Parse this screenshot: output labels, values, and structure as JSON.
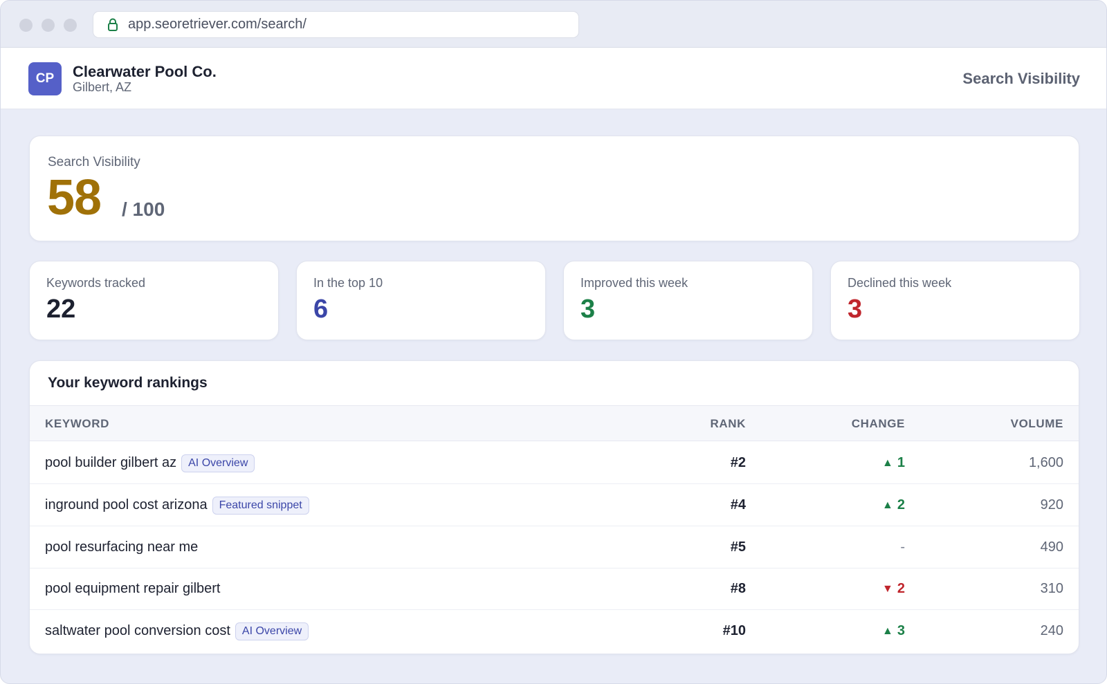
{
  "browser": {
    "url": "app.seoretriever.com/search/"
  },
  "business": {
    "initials": "CP",
    "name": "Clearwater Pool Co.",
    "location": "Gilbert, AZ"
  },
  "header": {
    "title": "Search Visibility"
  },
  "score": {
    "label": "Search Visibility",
    "value": "58",
    "max": "/ 100",
    "color": "#a07108"
  },
  "stats": [
    {
      "label": "Keywords tracked",
      "value": "22",
      "color": "#1d2130"
    },
    {
      "label": "In the top 10",
      "value": "6",
      "color": "#3b46a8"
    },
    {
      "label": "Improved this week",
      "value": "3",
      "color": "#1c8048"
    },
    {
      "label": "Declined this week",
      "value": "3",
      "color": "#c0262d"
    }
  ],
  "rankings": {
    "title": "Your keyword rankings",
    "columns": {
      "keyword": "KEYWORD",
      "rank": "RANK",
      "change": "CHANGE",
      "volume": "VOLUME"
    },
    "rows": [
      {
        "keyword": "pool builder gilbert az",
        "badge": "AI Overview",
        "rank": "#2",
        "change_dir": "up",
        "change_arrow": "▲",
        "change": "1",
        "volume": "1,600"
      },
      {
        "keyword": "inground pool cost arizona",
        "badge": "Featured snippet",
        "rank": "#4",
        "change_dir": "up",
        "change_arrow": "▲",
        "change": "2",
        "volume": "920"
      },
      {
        "keyword": "pool resurfacing near me",
        "badge": "",
        "rank": "#5",
        "change_dir": "flat",
        "change_arrow": "",
        "change": "-",
        "volume": "490"
      },
      {
        "keyword": "pool equipment repair gilbert",
        "badge": "",
        "rank": "#8",
        "change_dir": "down",
        "change_arrow": "▼",
        "change": "2",
        "volume": "310"
      },
      {
        "keyword": "saltwater pool conversion cost",
        "badge": "AI Overview",
        "rank": "#10",
        "change_dir": "up",
        "change_arrow": "▲",
        "change": "3",
        "volume": "240"
      }
    ]
  },
  "icons": {
    "lock": "lock-icon",
    "up": "arrow-up-icon",
    "down": "arrow-down-icon"
  },
  "colors": {
    "accent": "#5560c8",
    "positive": "#1c8048",
    "negative": "#c0262d"
  }
}
